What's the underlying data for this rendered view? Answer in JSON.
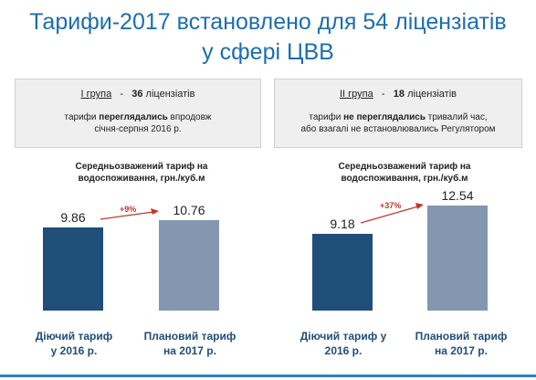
{
  "title": {
    "line1": "Тарифи-2017 встановлено для 54 ліцензіатів",
    "line2": "у  сфері  ЦВВ"
  },
  "groups": [
    {
      "name": "I група",
      "dash": "-",
      "count": "36",
      "count_suffix": "ліцензіатів",
      "desc_pre": "тарифи ",
      "desc_bold": "переглядались",
      "desc_post": " впродовж",
      "desc_line2": "січня-серпня 2016 р."
    },
    {
      "name": "II група",
      "dash": "-",
      "count": "18",
      "count_suffix": "ліцензіатів",
      "desc_pre": "тарифи ",
      "desc_bold": "не переглядались",
      "desc_post": " тривалий час,",
      "desc_line2": "або взагалі не встановлювались Регулятором"
    }
  ],
  "colors": {
    "title": "#1d6db0",
    "current_bar": "#1f4e79",
    "planned_bar": "#8497b0",
    "increase_arrow": "#c0392b"
  },
  "chart_data": [
    {
      "type": "bar",
      "title": "Середньозважений тариф  на водоспоживання, грн./куб.м",
      "title_line1": "Середньозважений тариф  на",
      "title_line2": "водоспоживання, грн./куб.м",
      "categories": [
        "Діючий тариф у 2016 р.",
        "Плановий тариф на 2017 р."
      ],
      "category_lines": [
        [
          "Діючий тариф",
          "у 2016 р."
        ],
        [
          "Плановий тариф",
          "на 2017 р."
        ]
      ],
      "values": [
        9.86,
        10.76
      ],
      "value_labels": [
        "9.86",
        "10.76"
      ],
      "annotation": "+9%",
      "ylim": [
        0,
        14
      ]
    },
    {
      "type": "bar",
      "title": "Середньозважений тариф  на водоспоживання, грн./куб.м",
      "title_line1": "Середньозважений тариф  на",
      "title_line2": "водоспоживання, грн./куб.м",
      "categories": [
        "Діючий тариф у 2016 р.",
        "Плановий тариф на 2017 р."
      ],
      "category_lines": [
        [
          "Діючий тариф у",
          "2016 р."
        ],
        [
          "Плановий тариф",
          "на 2017 р."
        ]
      ],
      "values": [
        9.18,
        12.54
      ],
      "value_labels": [
        "9.18",
        "12.54"
      ],
      "annotation": "+37%",
      "ylim": [
        0,
        14
      ]
    }
  ]
}
